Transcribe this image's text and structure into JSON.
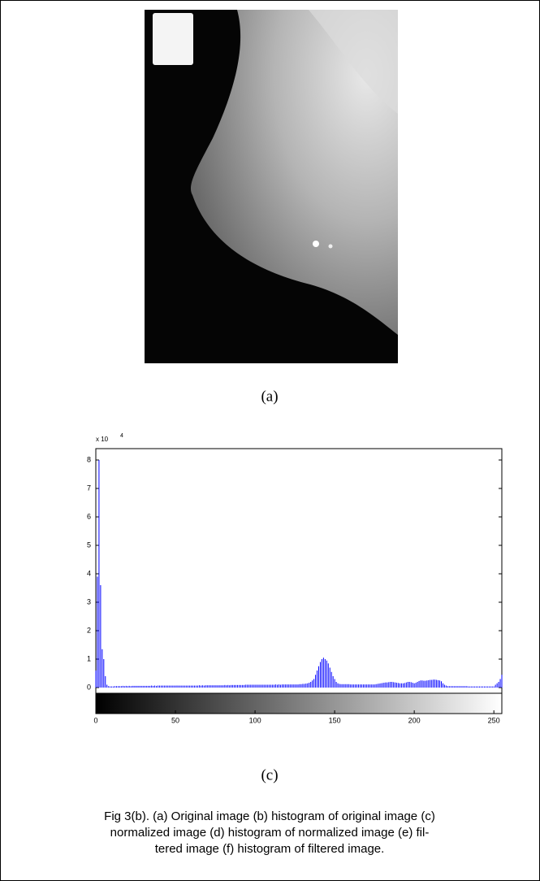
{
  "image_label": "(a)",
  "chart_data": {
    "type": "stem",
    "exponent_base": "x 10",
    "exponent": "4",
    "color": "#0000ff",
    "x": [
      0,
      1,
      2,
      3,
      4,
      5,
      6,
      7,
      8,
      9,
      10,
      11,
      12,
      13,
      14,
      15,
      16,
      17,
      18,
      19,
      20,
      21,
      22,
      23,
      24,
      25,
      26,
      27,
      28,
      29,
      30,
      31,
      32,
      33,
      34,
      35,
      36,
      37,
      38,
      39,
      40,
      41,
      42,
      43,
      44,
      45,
      46,
      47,
      48,
      49,
      50,
      51,
      52,
      53,
      54,
      55,
      56,
      57,
      58,
      59,
      60,
      61,
      62,
      63,
      64,
      65,
      66,
      67,
      68,
      69,
      70,
      71,
      72,
      73,
      74,
      75,
      76,
      77,
      78,
      79,
      80,
      81,
      82,
      83,
      84,
      85,
      86,
      87,
      88,
      89,
      90,
      91,
      92,
      93,
      94,
      95,
      96,
      97,
      98,
      99,
      100,
      101,
      102,
      103,
      104,
      105,
      106,
      107,
      108,
      109,
      110,
      111,
      112,
      113,
      114,
      115,
      116,
      117,
      118,
      119,
      120,
      121,
      122,
      123,
      124,
      125,
      126,
      127,
      128,
      129,
      130,
      131,
      132,
      133,
      134,
      135,
      136,
      137,
      138,
      139,
      140,
      141,
      142,
      143,
      144,
      145,
      146,
      147,
      148,
      149,
      150,
      151,
      152,
      153,
      154,
      155,
      156,
      157,
      158,
      159,
      160,
      161,
      162,
      163,
      164,
      165,
      166,
      167,
      168,
      169,
      170,
      171,
      172,
      173,
      174,
      175,
      176,
      177,
      178,
      179,
      180,
      181,
      182,
      183,
      184,
      185,
      186,
      187,
      188,
      189,
      190,
      191,
      192,
      193,
      194,
      195,
      196,
      197,
      198,
      199,
      200,
      201,
      202,
      203,
      204,
      205,
      206,
      207,
      208,
      209,
      210,
      211,
      212,
      213,
      214,
      215,
      216,
      217,
      218,
      219,
      220,
      221,
      222,
      223,
      224,
      225,
      226,
      227,
      228,
      229,
      230,
      231,
      232,
      233,
      234,
      235,
      236,
      237,
      238,
      239,
      240,
      241,
      242,
      243,
      244,
      245,
      246,
      247,
      248,
      249,
      250,
      251,
      252,
      253,
      254,
      255
    ],
    "values": [
      0.6,
      3.9,
      8.0,
      3.6,
      1.35,
      1.0,
      0.4,
      0.1,
      0.05,
      0.04,
      0.04,
      0.04,
      0.05,
      0.05,
      0.05,
      0.05,
      0.05,
      0.06,
      0.05,
      0.06,
      0.05,
      0.06,
      0.05,
      0.06,
      0.06,
      0.06,
      0.06,
      0.06,
      0.06,
      0.06,
      0.06,
      0.06,
      0.06,
      0.06,
      0.06,
      0.07,
      0.06,
      0.07,
      0.06,
      0.07,
      0.07,
      0.07,
      0.07,
      0.07,
      0.07,
      0.07,
      0.07,
      0.07,
      0.07,
      0.07,
      0.07,
      0.07,
      0.07,
      0.07,
      0.07,
      0.07,
      0.07,
      0.07,
      0.07,
      0.07,
      0.07,
      0.07,
      0.07,
      0.07,
      0.07,
      0.08,
      0.07,
      0.08,
      0.07,
      0.08,
      0.08,
      0.08,
      0.08,
      0.08,
      0.08,
      0.08,
      0.08,
      0.08,
      0.08,
      0.08,
      0.08,
      0.09,
      0.08,
      0.09,
      0.08,
      0.09,
      0.09,
      0.09,
      0.09,
      0.09,
      0.09,
      0.09,
      0.09,
      0.09,
      0.1,
      0.1,
      0.1,
      0.1,
      0.1,
      0.1,
      0.1,
      0.1,
      0.1,
      0.1,
      0.1,
      0.1,
      0.1,
      0.1,
      0.1,
      0.1,
      0.1,
      0.1,
      0.1,
      0.11,
      0.1,
      0.11,
      0.1,
      0.11,
      0.11,
      0.11,
      0.11,
      0.11,
      0.11,
      0.11,
      0.11,
      0.11,
      0.11,
      0.11,
      0.12,
      0.12,
      0.13,
      0.13,
      0.14,
      0.15,
      0.17,
      0.2,
      0.25,
      0.3,
      0.45,
      0.6,
      0.75,
      0.9,
      1.0,
      1.05,
      1.0,
      0.95,
      0.85,
      0.7,
      0.55,
      0.4,
      0.3,
      0.2,
      0.15,
      0.13,
      0.12,
      0.12,
      0.12,
      0.12,
      0.12,
      0.12,
      0.11,
      0.11,
      0.11,
      0.11,
      0.11,
      0.11,
      0.11,
      0.11,
      0.11,
      0.11,
      0.11,
      0.11,
      0.11,
      0.11,
      0.11,
      0.11,
      0.12,
      0.13,
      0.14,
      0.15,
      0.16,
      0.17,
      0.18,
      0.18,
      0.19,
      0.2,
      0.2,
      0.19,
      0.18,
      0.17,
      0.16,
      0.15,
      0.15,
      0.15,
      0.16,
      0.18,
      0.2,
      0.2,
      0.19,
      0.17,
      0.15,
      0.17,
      0.2,
      0.23,
      0.25,
      0.25,
      0.24,
      0.24,
      0.25,
      0.26,
      0.27,
      0.27,
      0.28,
      0.28,
      0.27,
      0.26,
      0.25,
      0.22,
      0.15,
      0.1,
      0.07,
      0.05,
      0.05,
      0.05,
      0.05,
      0.05,
      0.05,
      0.05,
      0.05,
      0.05,
      0.05,
      0.05,
      0.05,
      0.05,
      0.04,
      0.04,
      0.04,
      0.04,
      0.04,
      0.04,
      0.04,
      0.04,
      0.04,
      0.04,
      0.04,
      0.04,
      0.04,
      0.04,
      0.04,
      0.04,
      0.04,
      0.1,
      0.15,
      0.2,
      0.3,
      0.45
    ],
    "xlim": [
      0,
      255
    ],
    "ylim": [
      -0.2,
      8.4
    ],
    "xticks": [
      0,
      50,
      100,
      150,
      200,
      250
    ],
    "yticks": [
      0,
      1,
      2,
      3,
      4,
      5,
      6,
      7,
      8
    ]
  },
  "chart_label": "(c)",
  "caption": {
    "lines": [
      "Fig 3(b). (a) Original image (b) histogram of original image (c)",
      "normalized image (d) histogram of normalized image (e) fil-",
      "tered image (f) histogram of filtered image."
    ]
  }
}
